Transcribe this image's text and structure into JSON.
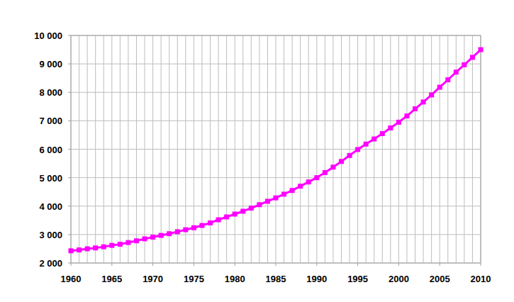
{
  "chart_data": {
    "type": "line",
    "x": [
      1960,
      1961,
      1962,
      1963,
      1964,
      1965,
      1966,
      1967,
      1968,
      1969,
      1970,
      1971,
      1972,
      1973,
      1974,
      1975,
      1976,
      1977,
      1978,
      1979,
      1980,
      1981,
      1982,
      1983,
      1984,
      1985,
      1986,
      1987,
      1988,
      1989,
      1990,
      1991,
      1992,
      1993,
      1994,
      1995,
      1996,
      1997,
      1998,
      1999,
      2000,
      2001,
      2002,
      2003,
      2004,
      2005,
      2006,
      2007,
      2008,
      2009,
      2010
    ],
    "values": [
      2430,
      2460,
      2500,
      2530,
      2570,
      2620,
      2660,
      2720,
      2780,
      2850,
      2910,
      2970,
      3030,
      3100,
      3170,
      3240,
      3320,
      3410,
      3520,
      3620,
      3720,
      3820,
      3930,
      4050,
      4170,
      4290,
      4420,
      4550,
      4700,
      4850,
      5000,
      5180,
      5370,
      5570,
      5780,
      5990,
      6180,
      6360,
      6550,
      6750,
      6950,
      7170,
      7420,
      7660,
      7910,
      8180,
      8440,
      8710,
      8970,
      9230,
      9500
    ],
    "color": "#ff00ff",
    "marker": "square",
    "xlim": [
      1960,
      2010
    ],
    "xticks": [
      1960,
      1965,
      1970,
      1975,
      1980,
      1985,
      1990,
      1995,
      2000,
      2005,
      2010
    ],
    "ylim": [
      2000,
      10000
    ],
    "yticks": [
      {
        "value": 2000,
        "label": "2 000"
      },
      {
        "value": 3000,
        "label": "3 000"
      },
      {
        "value": 4000,
        "label": "4 000"
      },
      {
        "value": 5000,
        "label": "5 000"
      },
      {
        "value": 6000,
        "label": "6 000"
      },
      {
        "value": 7000,
        "label": "7 000"
      },
      {
        "value": 8000,
        "label": "8 000"
      },
      {
        "value": 9000,
        "label": "9 000"
      },
      {
        "value": 10000,
        "label": "10 000"
      }
    ],
    "grid": true
  }
}
